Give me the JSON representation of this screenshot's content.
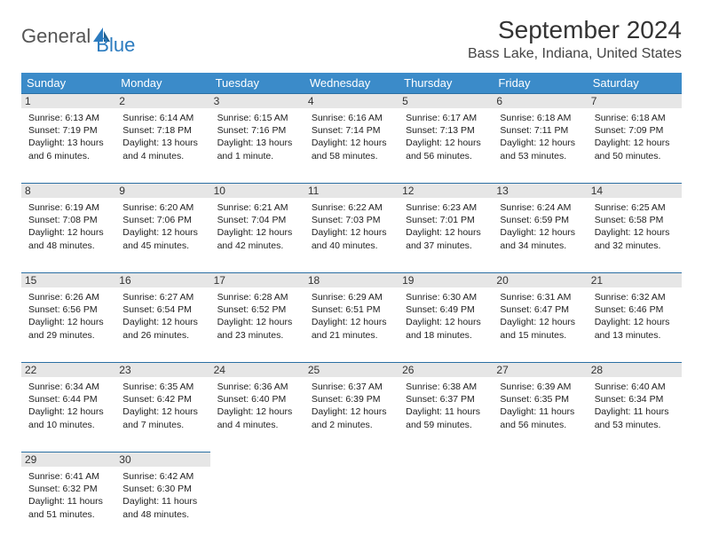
{
  "brand": {
    "part1": "General",
    "part2": "Blue"
  },
  "title": "September 2024",
  "location": "Bass Lake, Indiana, United States",
  "colors": {
    "header_bg": "#3b8bc9",
    "header_text": "#ffffff",
    "daybar_bg": "#e6e6e6",
    "daybar_border": "#2b6fa3",
    "brand_accent": "#2b7bbf"
  },
  "weekdays": [
    "Sunday",
    "Monday",
    "Tuesday",
    "Wednesday",
    "Thursday",
    "Friday",
    "Saturday"
  ],
  "weeks": [
    [
      {
        "day": "1",
        "sunrise": "Sunrise: 6:13 AM",
        "sunset": "Sunset: 7:19 PM",
        "daylight1": "Daylight: 13 hours",
        "daylight2": "and 6 minutes."
      },
      {
        "day": "2",
        "sunrise": "Sunrise: 6:14 AM",
        "sunset": "Sunset: 7:18 PM",
        "daylight1": "Daylight: 13 hours",
        "daylight2": "and 4 minutes."
      },
      {
        "day": "3",
        "sunrise": "Sunrise: 6:15 AM",
        "sunset": "Sunset: 7:16 PM",
        "daylight1": "Daylight: 13 hours",
        "daylight2": "and 1 minute."
      },
      {
        "day": "4",
        "sunrise": "Sunrise: 6:16 AM",
        "sunset": "Sunset: 7:14 PM",
        "daylight1": "Daylight: 12 hours",
        "daylight2": "and 58 minutes."
      },
      {
        "day": "5",
        "sunrise": "Sunrise: 6:17 AM",
        "sunset": "Sunset: 7:13 PM",
        "daylight1": "Daylight: 12 hours",
        "daylight2": "and 56 minutes."
      },
      {
        "day": "6",
        "sunrise": "Sunrise: 6:18 AM",
        "sunset": "Sunset: 7:11 PM",
        "daylight1": "Daylight: 12 hours",
        "daylight2": "and 53 minutes."
      },
      {
        "day": "7",
        "sunrise": "Sunrise: 6:18 AM",
        "sunset": "Sunset: 7:09 PM",
        "daylight1": "Daylight: 12 hours",
        "daylight2": "and 50 minutes."
      }
    ],
    [
      {
        "day": "8",
        "sunrise": "Sunrise: 6:19 AM",
        "sunset": "Sunset: 7:08 PM",
        "daylight1": "Daylight: 12 hours",
        "daylight2": "and 48 minutes."
      },
      {
        "day": "9",
        "sunrise": "Sunrise: 6:20 AM",
        "sunset": "Sunset: 7:06 PM",
        "daylight1": "Daylight: 12 hours",
        "daylight2": "and 45 minutes."
      },
      {
        "day": "10",
        "sunrise": "Sunrise: 6:21 AM",
        "sunset": "Sunset: 7:04 PM",
        "daylight1": "Daylight: 12 hours",
        "daylight2": "and 42 minutes."
      },
      {
        "day": "11",
        "sunrise": "Sunrise: 6:22 AM",
        "sunset": "Sunset: 7:03 PM",
        "daylight1": "Daylight: 12 hours",
        "daylight2": "and 40 minutes."
      },
      {
        "day": "12",
        "sunrise": "Sunrise: 6:23 AM",
        "sunset": "Sunset: 7:01 PM",
        "daylight1": "Daylight: 12 hours",
        "daylight2": "and 37 minutes."
      },
      {
        "day": "13",
        "sunrise": "Sunrise: 6:24 AM",
        "sunset": "Sunset: 6:59 PM",
        "daylight1": "Daylight: 12 hours",
        "daylight2": "and 34 minutes."
      },
      {
        "day": "14",
        "sunrise": "Sunrise: 6:25 AM",
        "sunset": "Sunset: 6:58 PM",
        "daylight1": "Daylight: 12 hours",
        "daylight2": "and 32 minutes."
      }
    ],
    [
      {
        "day": "15",
        "sunrise": "Sunrise: 6:26 AM",
        "sunset": "Sunset: 6:56 PM",
        "daylight1": "Daylight: 12 hours",
        "daylight2": "and 29 minutes."
      },
      {
        "day": "16",
        "sunrise": "Sunrise: 6:27 AM",
        "sunset": "Sunset: 6:54 PM",
        "daylight1": "Daylight: 12 hours",
        "daylight2": "and 26 minutes."
      },
      {
        "day": "17",
        "sunrise": "Sunrise: 6:28 AM",
        "sunset": "Sunset: 6:52 PM",
        "daylight1": "Daylight: 12 hours",
        "daylight2": "and 23 minutes."
      },
      {
        "day": "18",
        "sunrise": "Sunrise: 6:29 AM",
        "sunset": "Sunset: 6:51 PM",
        "daylight1": "Daylight: 12 hours",
        "daylight2": "and 21 minutes."
      },
      {
        "day": "19",
        "sunrise": "Sunrise: 6:30 AM",
        "sunset": "Sunset: 6:49 PM",
        "daylight1": "Daylight: 12 hours",
        "daylight2": "and 18 minutes."
      },
      {
        "day": "20",
        "sunrise": "Sunrise: 6:31 AM",
        "sunset": "Sunset: 6:47 PM",
        "daylight1": "Daylight: 12 hours",
        "daylight2": "and 15 minutes."
      },
      {
        "day": "21",
        "sunrise": "Sunrise: 6:32 AM",
        "sunset": "Sunset: 6:46 PM",
        "daylight1": "Daylight: 12 hours",
        "daylight2": "and 13 minutes."
      }
    ],
    [
      {
        "day": "22",
        "sunrise": "Sunrise: 6:34 AM",
        "sunset": "Sunset: 6:44 PM",
        "daylight1": "Daylight: 12 hours",
        "daylight2": "and 10 minutes."
      },
      {
        "day": "23",
        "sunrise": "Sunrise: 6:35 AM",
        "sunset": "Sunset: 6:42 PM",
        "daylight1": "Daylight: 12 hours",
        "daylight2": "and 7 minutes."
      },
      {
        "day": "24",
        "sunrise": "Sunrise: 6:36 AM",
        "sunset": "Sunset: 6:40 PM",
        "daylight1": "Daylight: 12 hours",
        "daylight2": "and 4 minutes."
      },
      {
        "day": "25",
        "sunrise": "Sunrise: 6:37 AM",
        "sunset": "Sunset: 6:39 PM",
        "daylight1": "Daylight: 12 hours",
        "daylight2": "and 2 minutes."
      },
      {
        "day": "26",
        "sunrise": "Sunrise: 6:38 AM",
        "sunset": "Sunset: 6:37 PM",
        "daylight1": "Daylight: 11 hours",
        "daylight2": "and 59 minutes."
      },
      {
        "day": "27",
        "sunrise": "Sunrise: 6:39 AM",
        "sunset": "Sunset: 6:35 PM",
        "daylight1": "Daylight: 11 hours",
        "daylight2": "and 56 minutes."
      },
      {
        "day": "28",
        "sunrise": "Sunrise: 6:40 AM",
        "sunset": "Sunset: 6:34 PM",
        "daylight1": "Daylight: 11 hours",
        "daylight2": "and 53 minutes."
      }
    ],
    [
      {
        "day": "29",
        "sunrise": "Sunrise: 6:41 AM",
        "sunset": "Sunset: 6:32 PM",
        "daylight1": "Daylight: 11 hours",
        "daylight2": "and 51 minutes."
      },
      {
        "day": "30",
        "sunrise": "Sunrise: 6:42 AM",
        "sunset": "Sunset: 6:30 PM",
        "daylight1": "Daylight: 11 hours",
        "daylight2": "and 48 minutes."
      },
      null,
      null,
      null,
      null,
      null
    ]
  ]
}
